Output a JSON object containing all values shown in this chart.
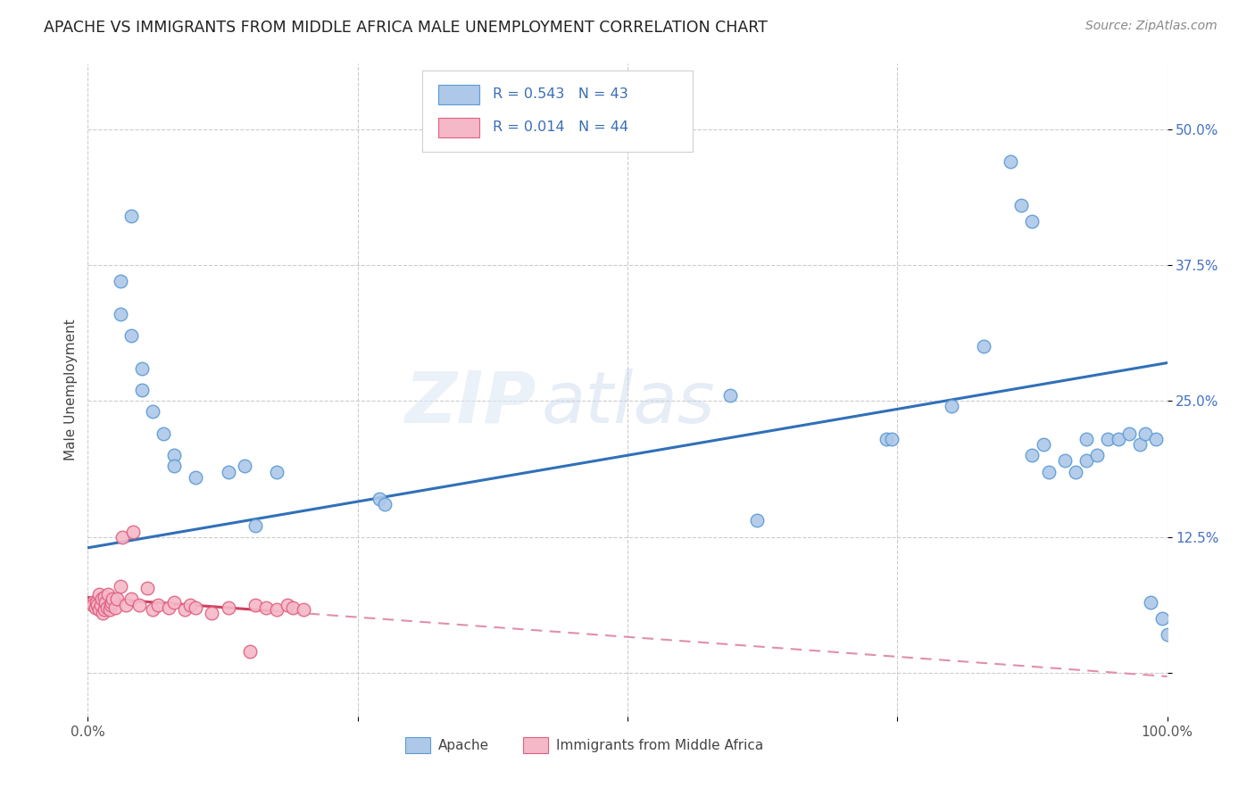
{
  "title": "APACHE VS IMMIGRANTS FROM MIDDLE AFRICA MALE UNEMPLOYMENT CORRELATION CHART",
  "source": "Source: ZipAtlas.com",
  "ylabel": "Male Unemployment",
  "xlim": [
    0.0,
    1.0
  ],
  "ylim": [
    -0.04,
    0.56
  ],
  "xticks": [
    0.0,
    0.25,
    0.5,
    0.75,
    1.0
  ],
  "xticklabels": [
    "0.0%",
    "",
    "",
    "",
    "100.0%"
  ],
  "ytick_positions": [
    0.0,
    0.125,
    0.25,
    0.375,
    0.5
  ],
  "ytick_labels": [
    "",
    "12.5%",
    "25.0%",
    "37.5%",
    "50.0%"
  ],
  "legend_R1": "0.543",
  "legend_N1": "43",
  "legend_R2": "0.014",
  "legend_N2": "44",
  "color_apache": "#adc8e8",
  "color_apache_edge": "#5b9bd5",
  "color_immig": "#f5b8c8",
  "color_immig_edge": "#e06080",
  "color_apache_line": "#3070b8",
  "color_immig_line_solid": "#d04060",
  "color_immig_line_dash": "#e090a8",
  "apache_x": [
    0.04,
    0.03,
    0.03,
    0.04,
    0.05,
    0.05,
    0.06,
    0.07,
    0.08,
    0.08,
    0.1,
    0.13,
    0.145,
    0.155,
    0.175,
    0.27,
    0.275,
    0.595,
    0.62,
    0.74,
    0.745,
    0.8,
    0.83,
    0.855,
    0.865,
    0.875,
    0.875,
    0.885,
    0.89,
    0.905,
    0.915,
    0.925,
    0.935,
    0.945,
    0.955,
    0.965,
    0.975,
    0.98,
    0.985,
    0.99,
    0.995,
    1.0,
    0.925
  ],
  "apache_y": [
    0.42,
    0.36,
    0.33,
    0.31,
    0.28,
    0.26,
    0.24,
    0.22,
    0.2,
    0.19,
    0.18,
    0.185,
    0.19,
    0.135,
    0.185,
    0.16,
    0.155,
    0.255,
    0.14,
    0.215,
    0.215,
    0.245,
    0.3,
    0.47,
    0.43,
    0.415,
    0.2,
    0.21,
    0.185,
    0.195,
    0.185,
    0.195,
    0.2,
    0.215,
    0.215,
    0.22,
    0.21,
    0.22,
    0.065,
    0.215,
    0.05,
    0.035,
    0.215
  ],
  "immig_x": [
    0.005,
    0.005,
    0.007,
    0.008,
    0.009,
    0.01,
    0.01,
    0.012,
    0.013,
    0.014,
    0.015,
    0.015,
    0.016,
    0.018,
    0.019,
    0.02,
    0.021,
    0.022,
    0.023,
    0.025,
    0.027,
    0.03,
    0.032,
    0.035,
    0.04,
    0.042,
    0.048,
    0.055,
    0.06,
    0.065,
    0.075,
    0.08,
    0.09,
    0.095,
    0.1,
    0.115,
    0.13,
    0.15,
    0.155,
    0.165,
    0.175,
    0.185,
    0.19,
    0.2
  ],
  "immig_y": [
    0.065,
    0.062,
    0.06,
    0.065,
    0.062,
    0.058,
    0.072,
    0.062,
    0.068,
    0.055,
    0.07,
    0.058,
    0.065,
    0.06,
    0.072,
    0.058,
    0.062,
    0.065,
    0.068,
    0.06,
    0.068,
    0.08,
    0.125,
    0.062,
    0.068,
    0.13,
    0.062,
    0.078,
    0.058,
    0.062,
    0.06,
    0.065,
    0.058,
    0.062,
    0.06,
    0.055,
    0.06,
    0.02,
    0.062,
    0.06,
    0.058,
    0.062,
    0.06,
    0.058
  ]
}
